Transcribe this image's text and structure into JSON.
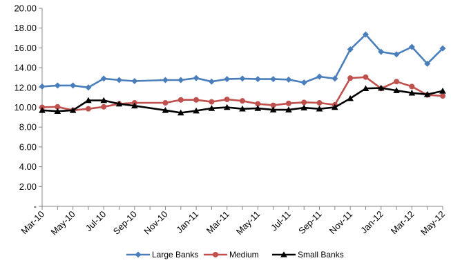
{
  "chart_data": {
    "type": "line",
    "title": "",
    "xlabel": "",
    "ylabel": "",
    "ylim": [
      0,
      20
    ],
    "y_ticks": [
      0,
      2,
      4,
      6,
      8,
      10,
      12,
      14,
      16,
      18,
      20
    ],
    "y_tick_labels": [
      "-",
      "2.00",
      "4.00",
      "6.00",
      "8.00",
      "10.00",
      "12.00",
      "14.00",
      "16.00",
      "18.00",
      "20.00"
    ],
    "grid": false,
    "legend_position": "bottom",
    "x": [
      "Mar-10",
      "Apr-10",
      "May-10",
      "Jun-10",
      "Jul-10",
      "Aug-10",
      "Sep-10",
      "Oct-10",
      "Nov-10",
      "Dec-10",
      "Jan-11",
      "Feb-11",
      "Mar-11",
      "Apr-11",
      "May-11",
      "Jun-11",
      "Jul-11",
      "Aug-11",
      "Sep-11",
      "Oct-11",
      "Nov-11",
      "Dec-11",
      "Jan-12",
      "Feb-12",
      "Mar-12",
      "Apr-12",
      "May-12"
    ],
    "x_tick_labels": [
      "Mar-10",
      "May-10",
      "Jul-10",
      "Sep-10",
      "Nov-10",
      "Jan-11",
      "Mar-11",
      "May-11",
      "Jul-11",
      "Sep-11",
      "Nov-11",
      "Jan-12",
      "Mar-12",
      "May-12"
    ],
    "series": [
      {
        "name": "Large  Banks",
        "color": "#4a7ebb",
        "marker": "diamond",
        "points": [
          [
            "Mar-10",
            12.1
          ],
          [
            "Apr-10",
            12.2
          ],
          [
            "May-10",
            12.2
          ],
          [
            "Jun-10",
            12.0
          ],
          [
            "Jul-10",
            12.9
          ],
          [
            "Aug-10",
            12.75
          ],
          [
            "Sep-10",
            12.65
          ],
          [
            "Nov-10",
            12.75
          ],
          [
            "Dec-10",
            12.75
          ],
          [
            "Jan-11",
            12.95
          ],
          [
            "Feb-11",
            12.6
          ],
          [
            "Mar-11",
            12.85
          ],
          [
            "Apr-11",
            12.9
          ],
          [
            "May-11",
            12.85
          ],
          [
            "Jun-11",
            12.85
          ],
          [
            "Jul-11",
            12.8
          ],
          [
            "Aug-11",
            12.5
          ],
          [
            "Sep-11",
            13.1
          ],
          [
            "Oct-11",
            12.9
          ],
          [
            "Nov-11",
            15.85
          ],
          [
            "Dec-11",
            17.35
          ],
          [
            "Jan-12",
            15.6
          ],
          [
            "Feb-12",
            15.35
          ],
          [
            "Mar-12",
            16.1
          ],
          [
            "Apr-12",
            14.4
          ],
          [
            "May-12",
            15.95
          ]
        ]
      },
      {
        "name": "Medium",
        "color": "#c0504d",
        "marker": "circle",
        "points": [
          [
            "Mar-10",
            10.0
          ],
          [
            "Apr-10",
            10.05
          ],
          [
            "May-10",
            9.7
          ],
          [
            "Jun-10",
            9.85
          ],
          [
            "Jul-10",
            10.05
          ],
          [
            "Aug-10",
            10.35
          ],
          [
            "Sep-10",
            10.45
          ],
          [
            "Nov-10",
            10.45
          ],
          [
            "Dec-10",
            10.75
          ],
          [
            "Jan-11",
            10.75
          ],
          [
            "Feb-11",
            10.55
          ],
          [
            "Mar-11",
            10.8
          ],
          [
            "Apr-11",
            10.65
          ],
          [
            "May-11",
            10.35
          ],
          [
            "Jun-11",
            10.2
          ],
          [
            "Jul-11",
            10.4
          ],
          [
            "Aug-11",
            10.5
          ],
          [
            "Sep-11",
            10.45
          ],
          [
            "Oct-11",
            10.25
          ],
          [
            "Nov-11",
            12.95
          ],
          [
            "Dec-11",
            13.05
          ],
          [
            "Jan-12",
            11.9
          ],
          [
            "Feb-12",
            12.6
          ],
          [
            "Mar-12",
            12.1
          ],
          [
            "Apr-12",
            11.25
          ],
          [
            "May-12",
            11.15
          ]
        ]
      },
      {
        "name": "Small Banks",
        "color": "#000000",
        "marker": "triangle",
        "points": [
          [
            "Mar-10",
            9.7
          ],
          [
            "Apr-10",
            9.6
          ],
          [
            "May-10",
            9.7
          ],
          [
            "Jun-10",
            10.7
          ],
          [
            "Jul-10",
            10.7
          ],
          [
            "Aug-10",
            10.35
          ],
          [
            "Sep-10",
            10.15
          ],
          [
            "Nov-10",
            9.7
          ],
          [
            "Dec-10",
            9.45
          ],
          [
            "Jan-11",
            9.65
          ],
          [
            "Feb-11",
            9.9
          ],
          [
            "Mar-11",
            10.0
          ],
          [
            "Apr-11",
            9.85
          ],
          [
            "May-11",
            9.9
          ],
          [
            "Jun-11",
            9.75
          ],
          [
            "Jul-11",
            9.75
          ],
          [
            "Aug-11",
            9.95
          ],
          [
            "Sep-11",
            9.85
          ],
          [
            "Oct-11",
            10.0
          ],
          [
            "Nov-11",
            10.9
          ],
          [
            "Dec-11",
            11.9
          ],
          [
            "Jan-12",
            11.95
          ],
          [
            "Feb-12",
            11.7
          ],
          [
            "Mar-12",
            11.45
          ],
          [
            "Apr-12",
            11.3
          ],
          [
            "May-12",
            11.65
          ]
        ]
      }
    ]
  }
}
